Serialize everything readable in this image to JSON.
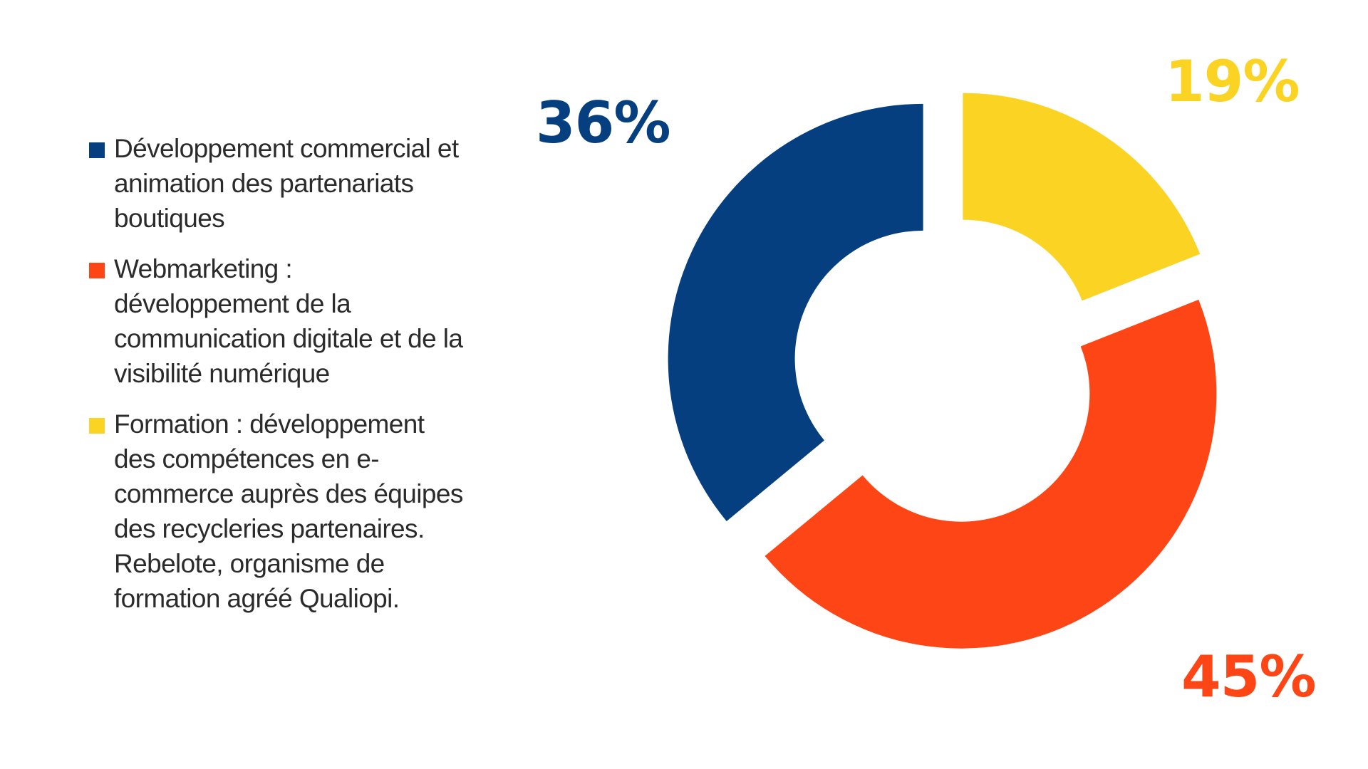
{
  "chart_data": {
    "type": "pie",
    "title": "",
    "categories": [
      "Développement commercial et animation des partenariats boutiques",
      "Webmarketing : développement de la communication digitale et de la visibilité numérique",
      "Formation : développement des compétences en e-commerce auprès des équipes des recycleries partenaires. Rebelote, organisme de formation agréé Qualiopi."
    ],
    "values": [
      36,
      45,
      19
    ],
    "data_labels": [
      "36%",
      "45%",
      "19%"
    ],
    "colors": [
      "#063f80",
      "#fd4516",
      "#fbd323"
    ],
    "donut": true,
    "exploded": true,
    "legend_position": "left"
  },
  "legend": {
    "items": [
      {
        "lines": [
          "Développement commercial et",
          "animation des partenariats",
          "boutiques"
        ],
        "color": "#063f80"
      },
      {
        "lines": [
          "Webmarketing :",
          "développement de la",
          "communication digitale et de la",
          "visibilité numérique"
        ],
        "color": "#fd4516"
      },
      {
        "lines": [
          "Formation : développement",
          "des compétences en e-",
          "commerce auprès des équipes",
          "des recycleries partenaires.",
          "Rebelote, organisme de",
          "formation agréé Qualiopi."
        ],
        "color": "#fbd323"
      }
    ]
  }
}
